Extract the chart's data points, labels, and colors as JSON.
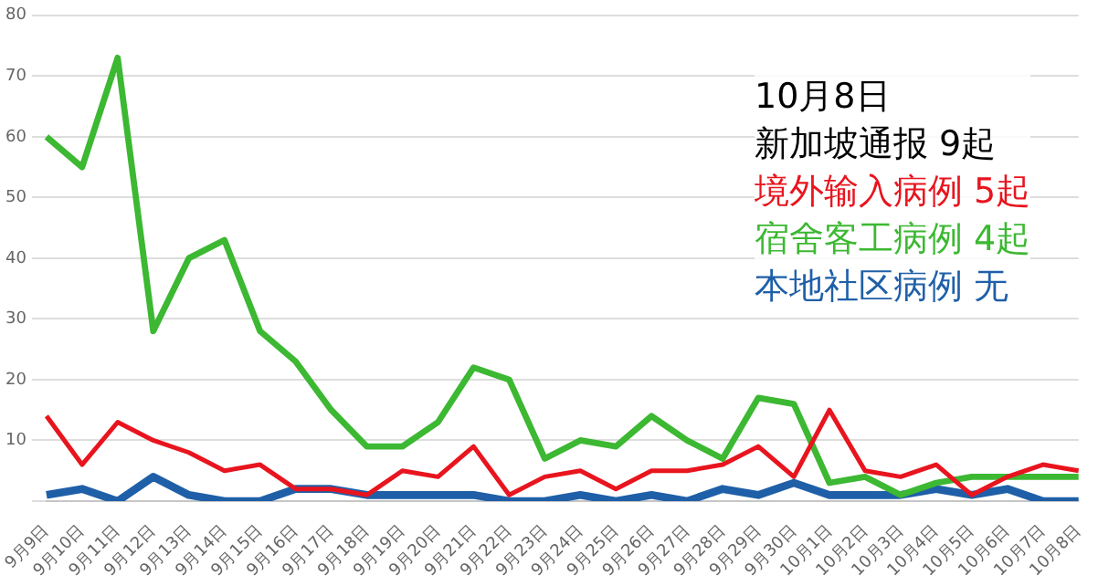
{
  "chart_data": {
    "type": "line",
    "categories": [
      "9月9日",
      "9月10日",
      "9月11日",
      "9月12日",
      "9月13日",
      "9月14日",
      "9月15日",
      "9月16日",
      "9月17日",
      "9月18日",
      "9月19日",
      "9月20日",
      "9月21日",
      "9月22日",
      "9月23日",
      "9月24日",
      "9月25日",
      "9月26日",
      "9月27日",
      "9月28日",
      "9月29日",
      "9月30日",
      "10月1日",
      "10月2日",
      "10月3日",
      "10月4日",
      "10月5日",
      "10月6日",
      "10月7日",
      "10月8日"
    ],
    "series": [
      {
        "color": "#e8141e",
        "values": [
          14,
          6,
          13,
          10,
          8,
          5,
          6,
          2,
          2,
          1,
          5,
          4,
          9,
          1,
          4,
          5,
          2,
          5,
          5,
          6,
          9,
          4,
          15,
          5,
          4,
          6,
          1,
          4,
          6,
          5
        ]
      },
      {
        "color": "#3cb832",
        "values": [
          60,
          55,
          73,
          28,
          40,
          43,
          28,
          23,
          15,
          9,
          9,
          13,
          22,
          20,
          7,
          10,
          9,
          14,
          10,
          7,
          17,
          16,
          3,
          4,
          1,
          3,
          4,
          4,
          4,
          4
        ]
      },
      {
        "color": "#1f5fa8",
        "values": [
          1,
          2,
          0,
          4,
          1,
          0,
          0,
          2,
          2,
          1,
          1,
          1,
          1,
          0,
          0,
          1,
          0,
          1,
          0,
          2,
          1,
          3,
          1,
          1,
          1,
          2,
          1,
          2,
          0,
          0
        ]
      }
    ],
    "ylim": [
      0,
      80
    ],
    "yticks": [
      {
        "value": 0,
        "label": null
      },
      10,
      20,
      30,
      40,
      50,
      60,
      70,
      80
    ],
    "grid": "y",
    "legend": false,
    "marker": "none",
    "line_style": "solid",
    "annotations": [
      "10月8日",
      "新加坡通报 9起",
      "境外输入病例 5起",
      "宿舍客工病例 4起",
      "本地社区病例 无"
    ]
  }
}
